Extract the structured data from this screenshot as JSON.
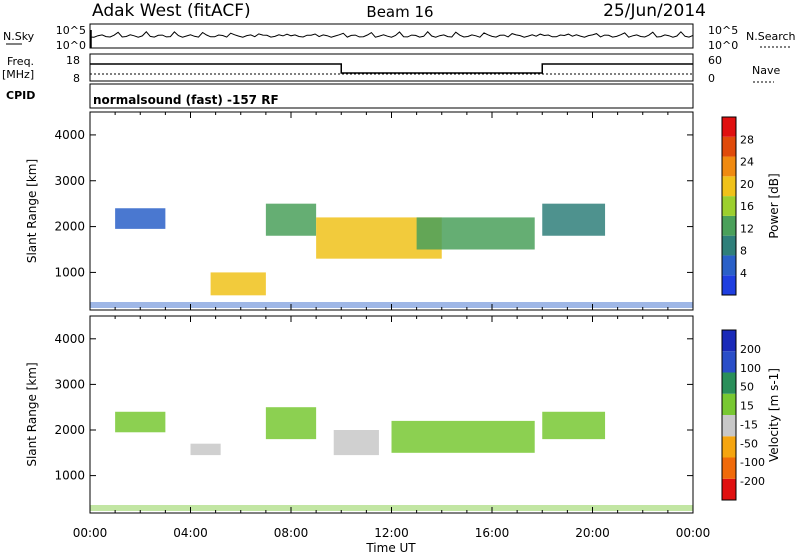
{
  "header": {
    "station": "Adak West (fitACF)",
    "beam": "Beam 16",
    "date": "25/Jun/2014"
  },
  "noise_panel": {
    "left_label": "N.Sky",
    "right_label": "N.Search",
    "left_ticks": [
      "10^5",
      "10^0"
    ],
    "right_ticks": [
      "10^5",
      "10^0"
    ]
  },
  "freq_panel": {
    "left_label_1": "Freq.",
    "left_label_2": "[MHz]",
    "right_label": "Nave",
    "left_ticks": [
      "18",
      "8"
    ],
    "right_ticks": [
      "60",
      "0"
    ]
  },
  "cpid_panel": {
    "label": "CPID",
    "text": "normalsound (fast) -157 RF"
  },
  "colors": {
    "power": [
      "#1f3fe0",
      "#2a60c8",
      "#2f7f7a",
      "#4aa05a",
      "#9ccf2e",
      "#f0c21a",
      "#f08a10",
      "#e04a0a",
      "#e01010"
    ],
    "velocity": [
      "#e01010",
      "#f06a0a",
      "#f5a510",
      "#c8c8c8",
      "#78c832",
      "#2a8f5a",
      "#2a4ec8",
      "#1a2ab8"
    ]
  },
  "chart_data": [
    {
      "type": "heatmap",
      "name": "power",
      "ylabel": "Slant Range [km]",
      "y_ticks": [
        "4000",
        "3000",
        "2000",
        "1000"
      ],
      "ylim": [
        180,
        4500
      ],
      "colorbar": {
        "label": "Power [dB]",
        "ticks": [
          "28",
          "24",
          "20",
          "16",
          "12",
          "8",
          "4"
        ],
        "range": [
          0,
          32
        ]
      },
      "regions": [
        {
          "t0": 1.0,
          "t1": 3.0,
          "r0": 1950,
          "r1": 2400,
          "v": 6
        },
        {
          "t0": 4.8,
          "t1": 7.0,
          "r0": 500,
          "r1": 1000,
          "v": 18
        },
        {
          "t0": 7.0,
          "t1": 9.0,
          "r0": 1800,
          "r1": 2500,
          "v": 14
        },
        {
          "t0": 9.0,
          "t1": 14.0,
          "r0": 1300,
          "r1": 2200,
          "v": 20
        },
        {
          "t0": 13.0,
          "t1": 17.7,
          "r0": 1500,
          "r1": 2200,
          "v": 14
        },
        {
          "t0": 18.0,
          "t1": 20.5,
          "r0": 1800,
          "r1": 2500,
          "v": 8
        }
      ]
    },
    {
      "type": "heatmap",
      "name": "velocity",
      "ylabel": "Slant Range [km]",
      "y_ticks": [
        "4000",
        "3000",
        "2000",
        "1000"
      ],
      "ylim": [
        180,
        4500
      ],
      "colorbar": {
        "label": "Velocity [m s-1]",
        "ticks": [
          "200",
          "100",
          "50",
          "15",
          "-15",
          "-50",
          "-100",
          "-200"
        ],
        "range": [
          -250,
          250
        ]
      },
      "regions": [
        {
          "t0": 1.0,
          "t1": 3.0,
          "r0": 1950,
          "r1": 2400,
          "v": 0
        },
        {
          "t0": 4.0,
          "t1": 5.2,
          "r0": 1450,
          "r1": 1700,
          "v": -60
        },
        {
          "t0": 7.0,
          "t1": 9.0,
          "r0": 1800,
          "r1": 2500,
          "v": 0
        },
        {
          "t0": 9.7,
          "t1": 11.5,
          "r0": 1450,
          "r1": 2000,
          "v": -60
        },
        {
          "t0": 12.0,
          "t1": 17.7,
          "r0": 1500,
          "r1": 2200,
          "v": 0
        },
        {
          "t0": 18.0,
          "t1": 20.5,
          "r0": 1800,
          "r1": 2400,
          "v": 0
        }
      ]
    }
  ],
  "x_axis": {
    "label": "Time UT",
    "ticks": [
      "00:00",
      "04:00",
      "08:00",
      "12:00",
      "16:00",
      "20:00",
      "00:00"
    ],
    "range": [
      0,
      24
    ]
  }
}
